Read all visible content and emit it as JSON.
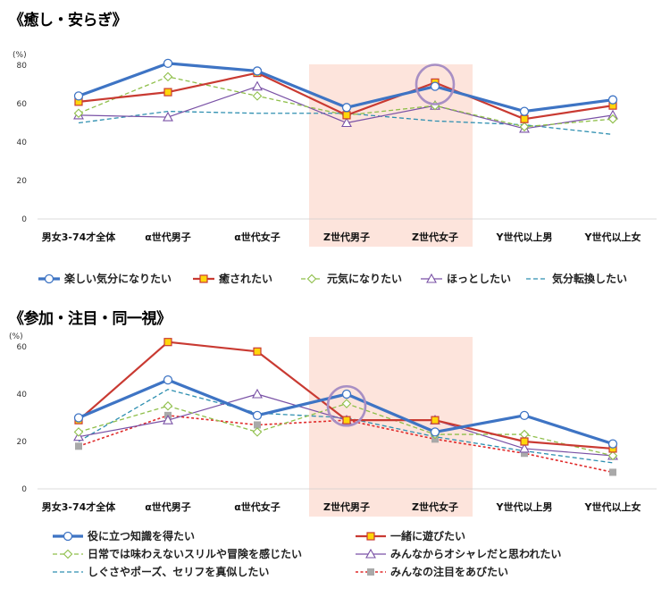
{
  "chart_data": [
    {
      "type": "line",
      "title": "《癒し・安らぎ》",
      "unit": "(%)",
      "categories": [
        "男女3-74才全体",
        "α世代男子",
        "α世代女子",
        "Z世代男子",
        "Z世代女子",
        "Y世代以上男",
        "Y世代以上女"
      ],
      "yticks": [
        "80",
        "60",
        "40",
        "20",
        "0"
      ],
      "ylim": [
        0,
        80
      ],
      "highlight_categories": [
        "Z世代男子",
        "Z世代女子"
      ],
      "circled": {
        "category": "Z世代女子",
        "value": 70
      },
      "series": [
        {
          "name": "楽しい気分になりたい",
          "values": [
            64,
            81,
            77,
            58,
            69,
            56,
            62
          ],
          "color": "#3e74c4",
          "style": "thick",
          "marker": "circle"
        },
        {
          "name": "癒されたい",
          "values": [
            61,
            66,
            76,
            54,
            71,
            52,
            59
          ],
          "color": "#c93a32",
          "style": "solid",
          "marker": "square"
        },
        {
          "name": "元気になりたい",
          "values": [
            55,
            74,
            64,
            54,
            59,
            48,
            52
          ],
          "color": "#8fbf4a",
          "style": "dashed",
          "marker": "diamond"
        },
        {
          "name": "ほっとしたい",
          "values": [
            54,
            53,
            69,
            50,
            59,
            47,
            54
          ],
          "color": "#7a52a6",
          "style": "solid-thin",
          "marker": "triangle"
        },
        {
          "name": "気分転換したい",
          "values": [
            50,
            56,
            55,
            55,
            51,
            49,
            44
          ],
          "color": "#2e8fb0",
          "style": "dashed",
          "marker": "none"
        }
      ]
    },
    {
      "type": "line",
      "title": "《参加・注目・同一視》",
      "unit": "(%)",
      "categories": [
        "男女3-74才全体",
        "α世代男子",
        "α世代女子",
        "Z世代男子",
        "Z世代女子",
        "Y世代以上男",
        "Y世代以上女"
      ],
      "yticks": [
        "60",
        "40",
        "20",
        "0"
      ],
      "ylim": [
        0,
        60
      ],
      "highlight_categories": [
        "Z世代男子",
        "Z世代女子"
      ],
      "circled": {
        "category": "Z世代男子",
        "value": 35
      },
      "series": [
        {
          "name": "役に立つ知識を得たい",
          "values": [
            30,
            46,
            31,
            40,
            24,
            31,
            19
          ],
          "color": "#3e74c4",
          "style": "thick",
          "marker": "circle"
        },
        {
          "name": "一緒に遊びたい",
          "values": [
            29,
            62,
            58,
            29,
            29,
            20,
            17
          ],
          "color": "#c93a32",
          "style": "solid",
          "marker": "square"
        },
        {
          "name": "日常では味わえないスリルや冒険を感じたい",
          "values": [
            24,
            35,
            24,
            36,
            23,
            23,
            14
          ],
          "color": "#8fbf4a",
          "style": "dashed",
          "marker": "diamond"
        },
        {
          "name": "みんなからオシャレだと思われたい",
          "values": [
            22,
            29,
            40,
            29,
            29,
            17,
            14
          ],
          "color": "#7a52a6",
          "style": "solid-thin",
          "marker": "triangle"
        },
        {
          "name": "しぐさやポーズ、セリフを真似したい",
          "values": [
            20,
            42,
            32,
            30,
            22,
            16,
            11
          ],
          "color": "#2e8fb0",
          "style": "dashed",
          "marker": "none"
        },
        {
          "name": "みんなの注目をあびたい",
          "values": [
            18,
            31,
            27,
            29,
            21,
            15,
            7
          ],
          "color": "#e02a2a",
          "style": "dotted",
          "marker": "square-gray"
        }
      ]
    }
  ]
}
